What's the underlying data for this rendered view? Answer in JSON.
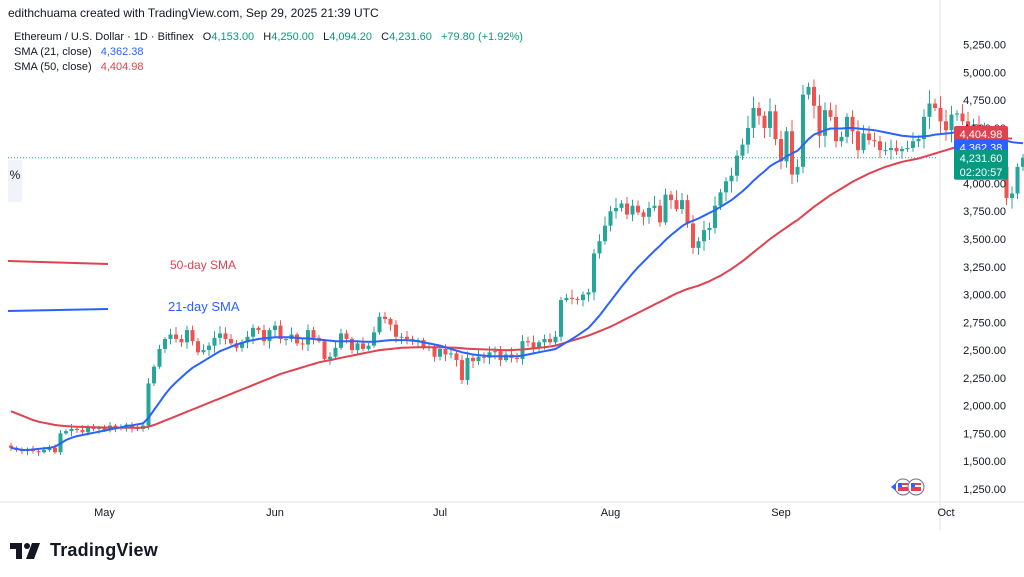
{
  "header": {
    "byline": "edithchuama created with TradingView.com, Sep 29, 2025 21:39 UTC",
    "symbol": "Ethereum / U.S. Dollar · 1D · Bitfinex",
    "ohlc": {
      "o_label": "O",
      "o": "4,153.00",
      "h_label": "H",
      "h": "4,250.00",
      "l_label": "L",
      "l": "4,094.20",
      "c_label": "C",
      "c": "4,231.60",
      "change": "+79.80 (+1.92%)"
    },
    "sma21_label": "SMA (21, close)",
    "sma21_value": "4,362.38",
    "sma50_label": "SMA (50, close)",
    "sma50_value": "4,404.98"
  },
  "side_tab": "%",
  "annotations": {
    "sma50": "50-day SMA",
    "sma21": "21-day SMA"
  },
  "price_badges": {
    "sma50": "4,404.98",
    "sma21": "4,362.38",
    "last": "4,231.60",
    "countdown": "02:20:57"
  },
  "brand": "TradingView",
  "colors": {
    "up": "#26a69a",
    "down": "#ef5350",
    "sma21": "#2962ff",
    "sma50": "#e0424f",
    "axis_text": "#131722",
    "grid_dot": "#26a69a"
  },
  "chart_data": {
    "type": "candlestick",
    "title": "Ethereum / U.S. Dollar · 1D · Bitfinex",
    "ylim": [
      1150,
      5400
    ],
    "yticks": [
      1250,
      1500,
      1750,
      2000,
      2250,
      2500,
      2750,
      3000,
      3250,
      3500,
      3750,
      4000,
      4250,
      4500,
      4750,
      5000,
      5250
    ],
    "ytick_labels": [
      "1,250.00",
      "1,500.00",
      "1,750.00",
      "2,000.00",
      "2,250.00",
      "2,500.00",
      "2,750.00",
      "3,000.00",
      "3,250.00",
      "3,500.00",
      "3,750.00",
      "4,000.00",
      "4,250.00",
      "4,500.00",
      "4,750.00",
      "5,000.00",
      "5,250.00"
    ],
    "x_start": "2025-04-14",
    "x_end_visible": "2025-10-04",
    "xticks": [
      {
        "label": "May",
        "date": "2025-05-01"
      },
      {
        "label": "Jun",
        "date": "2025-06-01"
      },
      {
        "label": "Jul",
        "date": "2025-07-01"
      },
      {
        "label": "Aug",
        "date": "2025-08-01"
      },
      {
        "label": "Sep",
        "date": "2025-09-01"
      },
      {
        "label": "Oct",
        "date": "2025-10-01"
      }
    ],
    "closes": [
      1620,
      1600,
      1590,
      1610,
      1590,
      1580,
      1600,
      1620,
      1580,
      1750,
      1770,
      1790,
      1780,
      1760,
      1800,
      1790,
      1800,
      1780,
      1820,
      1800,
      1810,
      1830,
      1800,
      1790,
      1820,
      2200,
      2350,
      2510,
      2600,
      2640,
      2600,
      2570,
      2680,
      2580,
      2480,
      2500,
      2540,
      2610,
      2650,
      2600,
      2560,
      2520,
      2570,
      2620,
      2700,
      2680,
      2580,
      2680,
      2720,
      2600,
      2600,
      2640,
      2560,
      2550,
      2680,
      2610,
      2580,
      2420,
      2440,
      2520,
      2650,
      2600,
      2500,
      2560,
      2510,
      2540,
      2660,
      2800,
      2780,
      2730,
      2620,
      2620,
      2600,
      2580,
      2590,
      2520,
      2530,
      2440,
      2510,
      2460,
      2470,
      2410,
      2230,
      2430,
      2400,
      2440,
      2430,
      2480,
      2490,
      2410,
      2460,
      2430,
      2420,
      2580,
      2570,
      2520,
      2570,
      2600,
      2570,
      2620,
      2950,
      2970,
      2960,
      2950,
      3000,
      3020,
      3370,
      3480,
      3620,
      3750,
      3780,
      3820,
      3720,
      3800,
      3740,
      3700,
      3780,
      3800,
      3650,
      3900,
      3850,
      3770,
      3850,
      3640,
      3420,
      3480,
      3580,
      3600,
      3800,
      3920,
      4020,
      4070,
      4250,
      4350,
      4500,
      4680,
      4610,
      4500,
      4650,
      4400,
      4200,
      4470,
      4080,
      4150,
      4800,
      4870,
      4700,
      4430,
      4660,
      4600,
      4380,
      4420,
      4600,
      4470,
      4300,
      4450,
      4390,
      4380,
      4300,
      4300,
      4320,
      4290,
      4310,
      4320,
      4380,
      4400,
      4600,
      4720,
      4680,
      4560,
      4480,
      4620,
      4630,
      4560,
      4500,
      4530,
      4420,
      4460,
      4160,
      4180,
      4150,
      3870,
      3910,
      4150,
      4231.6
    ],
    "sma21": [
      1620,
      1610,
      1600,
      1600,
      1605,
      1610,
      1615,
      1620,
      1630,
      1660,
      1690,
      1710,
      1725,
      1735,
      1745,
      1755,
      1765,
      1775,
      1785,
      1795,
      1805,
      1815,
      1822,
      1832,
      1840,
      1890,
      1960,
      2030,
      2100,
      2160,
      2210,
      2255,
      2300,
      2340,
      2370,
      2400,
      2430,
      2460,
      2490,
      2510,
      2530,
      2550,
      2565,
      2580,
      2590,
      2600,
      2605,
      2610,
      2615,
      2615,
      2615,
      2615,
      2610,
      2605,
      2605,
      2600,
      2595,
      2590,
      2585,
      2580,
      2580,
      2580,
      2580,
      2580,
      2575,
      2575,
      2575,
      2580,
      2585,
      2590,
      2590,
      2590,
      2590,
      2585,
      2580,
      2570,
      2560,
      2550,
      2540,
      2525,
      2510,
      2495,
      2480,
      2470,
      2460,
      2455,
      2450,
      2445,
      2445,
      2445,
      2445,
      2445,
      2445,
      2450,
      2460,
      2470,
      2480,
      2490,
      2500,
      2510,
      2540,
      2570,
      2600,
      2630,
      2665,
      2700,
      2755,
      2810,
      2875,
      2940,
      3005,
      3070,
      3130,
      3190,
      3245,
      3295,
      3345,
      3395,
      3440,
      3490,
      3535,
      3575,
      3615,
      3645,
      3665,
      3685,
      3710,
      3735,
      3760,
      3790,
      3820,
      3850,
      3890,
      3930,
      3975,
      4025,
      4070,
      4110,
      4155,
      4185,
      4210,
      4245,
      4270,
      4295,
      4345,
      4400,
      4440,
      4460,
      4480,
      4495,
      4495,
      4495,
      4500,
      4500,
      4495,
      4490,
      4485,
      4480,
      4470,
      4460,
      4450,
      4440,
      4430,
      4425,
      4420,
      4420,
      4425,
      4430,
      4440,
      4445,
      4450,
      4455,
      4465,
      4470,
      4470,
      4470,
      4465,
      4460,
      4440,
      4420,
      4405,
      4385,
      4372,
      4366,
      4362.38
    ],
    "sma50_start_value": 1950,
    "sma50": [
      1950,
      1930,
      1910,
      1890,
      1870,
      1855,
      1845,
      1835,
      1825,
      1820,
      1815,
      1812,
      1810,
      1808,
      1806,
      1805,
      1804,
      1803,
      1802,
      1800,
      1800,
      1800,
      1800,
      1800,
      1802,
      1810,
      1825,
      1845,
      1865,
      1885,
      1905,
      1925,
      1945,
      1965,
      1985,
      2005,
      2025,
      2045,
      2065,
      2085,
      2105,
      2125,
      2145,
      2165,
      2185,
      2205,
      2225,
      2245,
      2265,
      2285,
      2300,
      2315,
      2330,
      2345,
      2360,
      2375,
      2390,
      2400,
      2410,
      2420,
      2430,
      2440,
      2450,
      2460,
      2470,
      2480,
      2490,
      2500,
      2505,
      2510,
      2515,
      2520,
      2522,
      2524,
      2526,
      2526,
      2526,
      2526,
      2526,
      2524,
      2522,
      2520,
      2516,
      2512,
      2510,
      2508,
      2506,
      2504,
      2502,
      2500,
      2500,
      2500,
      2502,
      2505,
      2510,
      2515,
      2520,
      2526,
      2532,
      2540,
      2555,
      2570,
      2585,
      2600,
      2615,
      2630,
      2650,
      2670,
      2690,
      2710,
      2735,
      2760,
      2785,
      2810,
      2835,
      2860,
      2885,
      2910,
      2935,
      2960,
      2985,
      3010,
      3030,
      3050,
      3065,
      3080,
      3100,
      3120,
      3145,
      3170,
      3200,
      3230,
      3265,
      3300,
      3340,
      3380,
      3420,
      3460,
      3500,
      3535,
      3570,
      3605,
      3640,
      3670,
      3710,
      3750,
      3790,
      3825,
      3860,
      3895,
      3925,
      3955,
      3985,
      4015,
      4040,
      4065,
      4090,
      4110,
      4130,
      4150,
      4165,
      4180,
      4195,
      4205,
      4215,
      4225,
      4240,
      4255,
      4270,
      4285,
      4300,
      4315,
      4330,
      4345,
      4360,
      4375,
      4388,
      4398,
      4402,
      4404,
      4405,
      4405,
      4404.98
    ],
    "series": [
      {
        "name": "SMA (21, close)",
        "last": 4362.38
      },
      {
        "name": "SMA (50, close)",
        "last": 4404.98
      }
    ],
    "last_close": 4231.6,
    "legend_position": "top-left"
  }
}
